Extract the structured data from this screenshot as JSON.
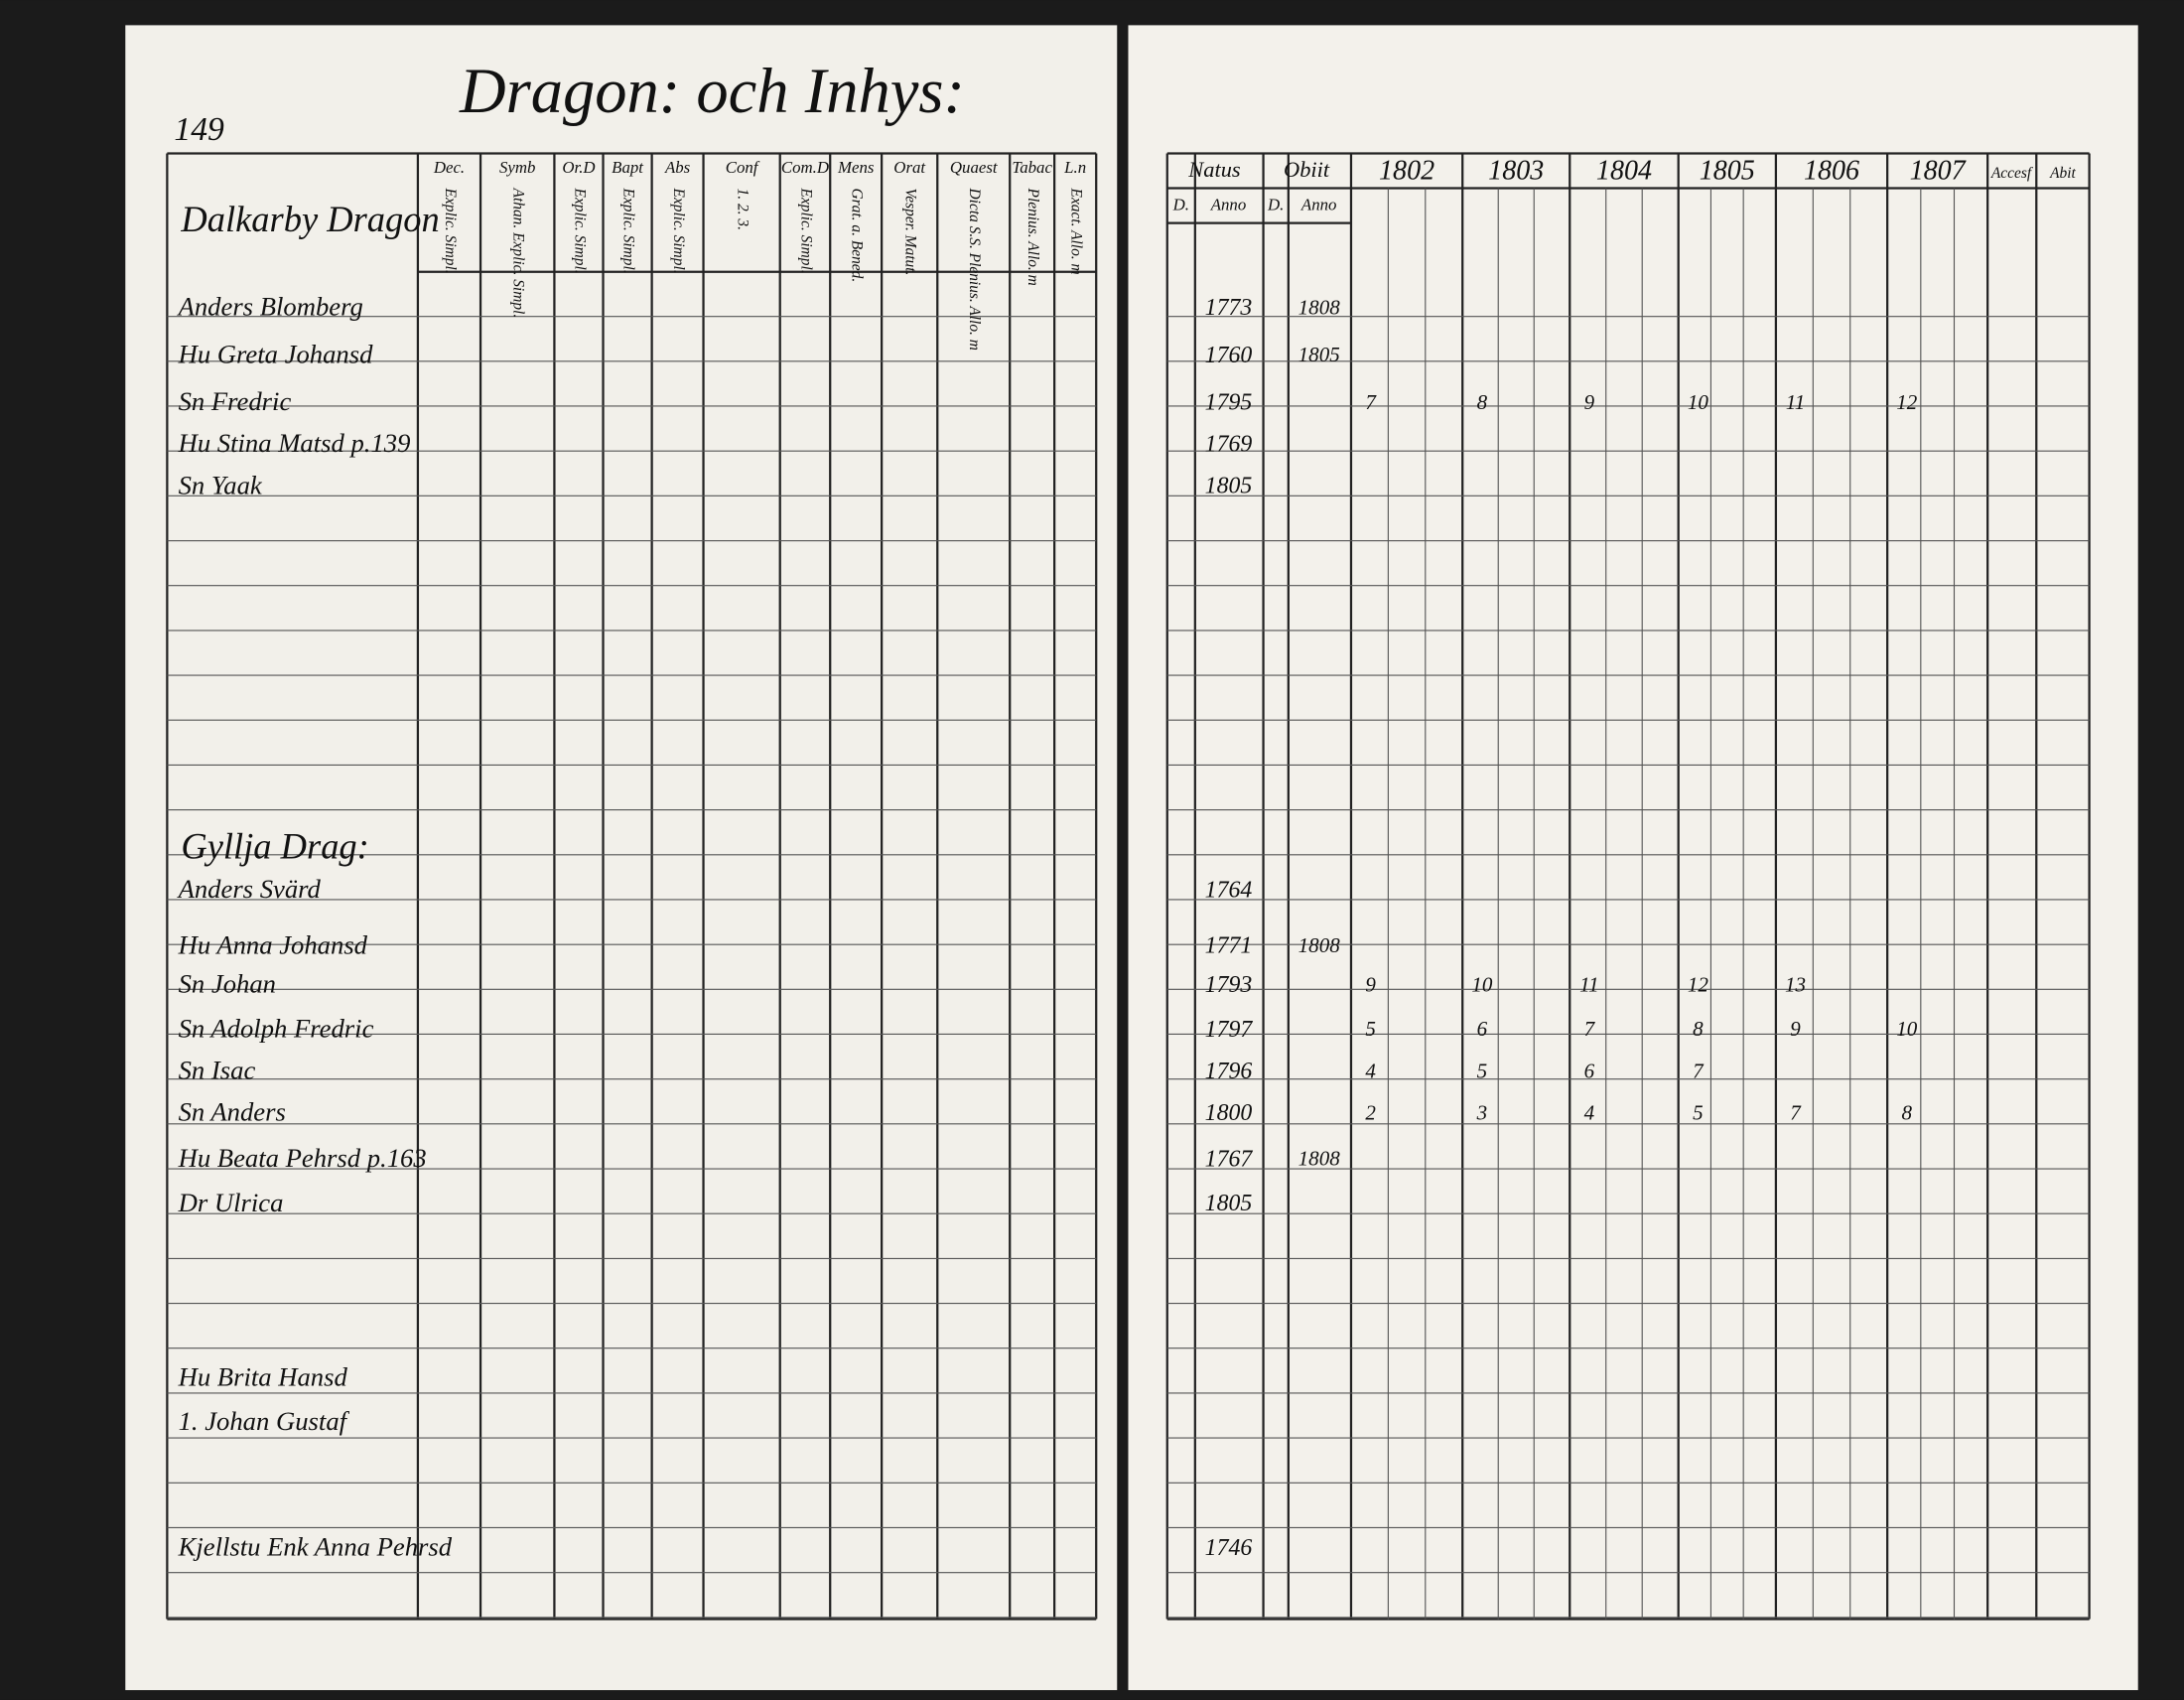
{
  "left_page": {
    "page_number": "149",
    "title": "Dragon: och Inhys:",
    "columns": [
      {
        "name": "Dec.",
        "sub": "Explic. Simpl."
      },
      {
        "name": "Symb",
        "sub": "Athan. Explic. Simpl."
      },
      {
        "name": "Or.D",
        "sub": "Explic. Simpl."
      },
      {
        "name": "Bapt",
        "sub": "Explic. Simpl."
      },
      {
        "name": "Abs",
        "sub": "Explic. Simpl."
      },
      {
        "name": "Conf",
        "sub": "1. 2. 3."
      },
      {
        "name": "Com.D",
        "sub": "Explic. Simpl."
      },
      {
        "name": "Mens",
        "sub": "Grat. a. Bened."
      },
      {
        "name": "Orat",
        "sub": "Vesper. Matut."
      },
      {
        "name": "Quaest",
        "sub": "Dicta S.S. Plenius. Allo. m"
      },
      {
        "name": "Tabac",
        "sub": "Plenius. Allo. m"
      },
      {
        "name": "L.n",
        "sub": "Exact. Allo. m"
      }
    ],
    "sections": [
      {
        "heading": "Dalkarby Dragon",
        "rows": [
          {
            "name": "Anders Blomberg",
            "natus": 1773,
            "obiit": 1808
          },
          {
            "name": "Hu Greta Johansd",
            "natus": 1760,
            "obiit": 1805
          },
          {
            "name": "Sn Fredric",
            "natus": 1795,
            "ages": [
              7,
              8,
              9,
              10,
              11,
              12
            ]
          },
          {
            "name": "Hu Stina Matsd p.139",
            "natus": 1769
          },
          {
            "name": "Sn Yaak",
            "natus": 1805
          }
        ]
      },
      {
        "heading": "Gyllja Drag:",
        "rows": [
          {
            "name": "Anders Svärd",
            "natus": 1764
          },
          {
            "name": "Hu Anna Johansd",
            "natus": 1771,
            "obiit": 1808
          },
          {
            "name": "Sn Johan",
            "natus": 1793,
            "ages": [
              9,
              10,
              11,
              12,
              13
            ]
          },
          {
            "name": "Sn Adolph Fredric",
            "natus": 1797,
            "ages": [
              5,
              6,
              7,
              8,
              9,
              10
            ]
          },
          {
            "name": "Sn Isac",
            "natus": 1796,
            "ages": [
              4,
              5,
              6,
              7
            ]
          },
          {
            "name": "Sn Anders",
            "natus": 1800,
            "ages": [
              2,
              3,
              4,
              5,
              7,
              8
            ]
          },
          {
            "name": "Hu Beata Pehrsd p.163",
            "natus": 1767,
            "obiit": 1808
          },
          {
            "name": "Dr Ulrica",
            "natus": 1805
          },
          {
            "name": "Hu Brita Hansd"
          },
          {
            "name": "1. Johan Gustaf"
          },
          {
            "name": "Kjellstu Enk Anna Pehrsd",
            "natus": 1746
          }
        ]
      }
    ]
  },
  "right_page": {
    "natus": "Natus",
    "obiit": "Obiit",
    "day": "D.",
    "anno": "Anno",
    "years": [
      "1802",
      "1803",
      "1804",
      "1805",
      "1806",
      "1807"
    ],
    "accessit": "Accesf",
    "abiit": "Abit"
  }
}
